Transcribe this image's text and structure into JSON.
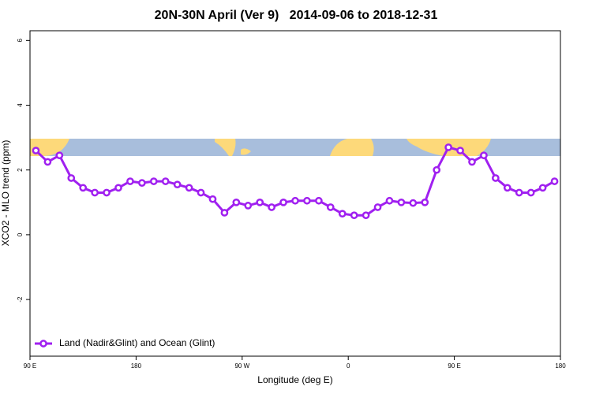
{
  "chart_data": {
    "type": "line",
    "title": "20N-30N April (Ver 9)   2014-09-06 to 2018-12-31",
    "x_label": "Longitude (deg E)",
    "y_label": "XCO2 - MLO trend (ppm)",
    "xlim": [
      90,
      540
    ],
    "ylim": [
      -3.75,
      6.3
    ],
    "xticks": [
      {
        "value": 90,
        "label": "90 E"
      },
      180,
      {
        "value": 270,
        "label": "90 W"
      },
      {
        "value": 360,
        "label": "0"
      },
      {
        "value": 450,
        "label": "90 E"
      },
      {
        "value": 540,
        "label": "180"
      }
    ],
    "yticks": [
      -2,
      0,
      2,
      4,
      6
    ],
    "legend_position": "bottom-left",
    "x": [
      95,
      105,
      115,
      125,
      135,
      145,
      155,
      165,
      175,
      185,
      195,
      205,
      215,
      225,
      235,
      245,
      255,
      265,
      275,
      285,
      295,
      305,
      315,
      325,
      335,
      345,
      355,
      365,
      375,
      385,
      395,
      405,
      415,
      425,
      435,
      445,
      455,
      465,
      475,
      485,
      495,
      505,
      515,
      525,
      535
    ],
    "series": [
      {
        "name": "Land (Nadir&Glint) and Ocean (Glint)",
        "color": "#a020f0",
        "values": [
          2.6,
          2.25,
          2.45,
          1.75,
          1.45,
          1.3,
          1.3,
          1.45,
          1.65,
          1.6,
          1.65,
          1.65,
          1.55,
          1.45,
          1.3,
          1.1,
          0.68,
          1.0,
          0.9,
          1.0,
          0.85,
          1.0,
          1.05,
          1.05,
          1.05,
          0.85,
          0.65,
          0.6,
          0.6,
          0.85,
          1.05,
          1.0,
          0.98,
          1.0,
          2.0,
          2.7,
          2.6,
          2.25,
          2.45,
          1.75,
          1.45,
          1.3,
          1.3,
          1.45,
          1.65
        ]
      }
    ]
  }
}
